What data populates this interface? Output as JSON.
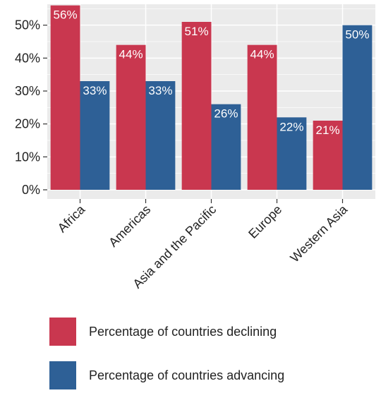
{
  "chart_data": {
    "type": "bar",
    "categories": [
      "Africa",
      "Americas",
      "Asia and the Pacific",
      "Europe",
      "Western Asia"
    ],
    "series": [
      {
        "name": "Percentage of countries declining",
        "color": "#c9374f",
        "values": [
          56,
          44,
          51,
          44,
          21
        ],
        "labels": [
          "56%",
          "44%",
          "51%",
          "44%",
          "21%"
        ]
      },
      {
        "name": "Percentage of countries advancing",
        "color": "#2e6096",
        "values": [
          33,
          33,
          26,
          22,
          50
        ],
        "labels": [
          "33%",
          "33%",
          "26%",
          "22%",
          "50%"
        ]
      }
    ],
    "yticks": [
      0,
      10,
      20,
      30,
      40,
      50
    ],
    "ytick_labels": [
      "0%",
      "10%",
      "20%",
      "30%",
      "40%",
      "50%"
    ],
    "ylim": [
      0,
      57
    ],
    "grid": true,
    "legend": "bottom",
    "background": "#ebebeb",
    "gridline_color": "#ffffff",
    "title": "",
    "xlabel": "",
    "ylabel": ""
  }
}
